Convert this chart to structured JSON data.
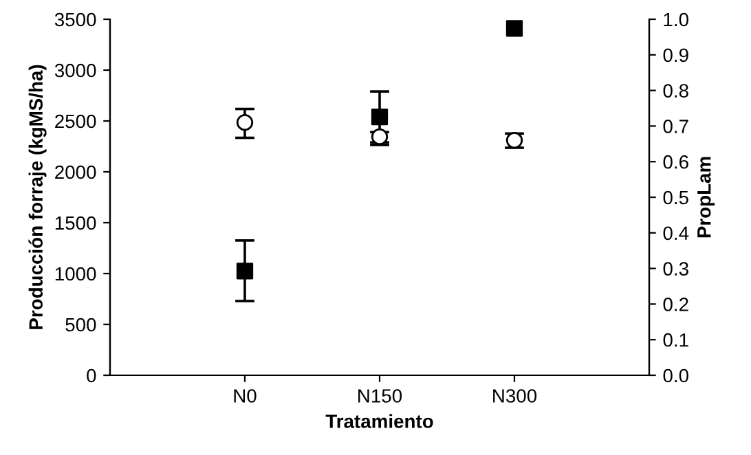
{
  "chart_data": {
    "type": "scatter",
    "xlabel": "Tratamiento",
    "ylabel": "Producción forraje (kgMS/ha)",
    "y2label": "PropLam",
    "categories": [
      "N0",
      "N150",
      "N300"
    ],
    "series": [
      {
        "color": "#000000",
        "marker": "square",
        "values": [
          1025,
          2540,
          3410
        ],
        "errors": [
          [
            730,
            1325
          ],
          [
            2290,
            2790
          ],
          null
        ]
      },
      {
        "color": "#ffffff",
        "marker": "circle",
        "axis": "y2",
        "values": [
          0.71,
          0.67,
          0.66
        ],
        "errors": [
          [
            0.667,
            0.748
          ],
          [
            0.647,
            0.683
          ],
          [
            0.639,
            0.679
          ]
        ]
      }
    ],
    "ylim": [
      0,
      3500
    ],
    "yticks": [
      0,
      500,
      1000,
      1500,
      2000,
      2500,
      3000,
      3500
    ],
    "y2lim": [
      0,
      1.0
    ],
    "y2ticks": [
      {
        "value": 0,
        "label": "0.0"
      },
      0.1,
      0.2,
      0.3,
      0.4,
      0.5,
      0.6,
      0.7,
      0.8,
      0.9,
      {
        "value": 1.0,
        "label": "1.0"
      }
    ],
    "grid": false,
    "legend": false
  }
}
